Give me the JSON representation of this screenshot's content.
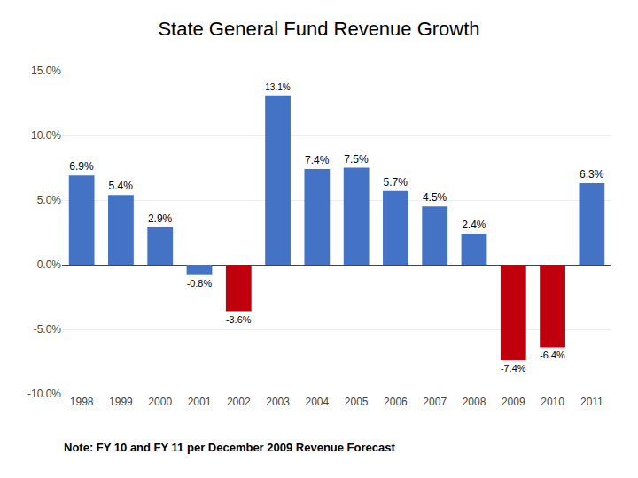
{
  "chart_data": {
    "type": "bar",
    "title": "State General Fund Revenue Growth",
    "annotations": [
      "Note: FY 10 and FY 11 per December 2009 Revenue Forecast"
    ],
    "categories": [
      "1998",
      "1999",
      "2000",
      "2001",
      "2002",
      "2003",
      "2004",
      "2005",
      "2006",
      "2007",
      "2008",
      "2009",
      "2010",
      "2011"
    ],
    "values": [
      6.9,
      5.4,
      2.9,
      -0.8,
      -3.6,
      13.1,
      7.4,
      7.5,
      5.7,
      4.5,
      2.4,
      -7.4,
      -6.4,
      6.3
    ],
    "value_labels": [
      "6.9%",
      "5.4%",
      "2.9%",
      "-0.8%",
      "-3.6%",
      "13.1%",
      "7.4%",
      "7.5%",
      "5.7%",
      "4.5%",
      "2.4%",
      "-7.4%",
      "-6.4%",
      "6.3%"
    ],
    "data_labels": true,
    "colors": [
      "#4472C4",
      "#4472C4",
      "#4472C4",
      "#4472C4",
      "#C0000C",
      "#4472C4",
      "#4472C4",
      "#4472C4",
      "#4472C4",
      "#4472C4",
      "#4472C4",
      "#C0000C",
      "#C0000C",
      "#4472C4"
    ],
    "ylim": [
      -10.0,
      15.0
    ],
    "yticks": [
      {
        "value": -10.0,
        "label": "-10.0%"
      },
      {
        "value": -5.0,
        "label": "-5.0%"
      },
      {
        "value": 0.0,
        "label": "0.0%"
      },
      {
        "value": 5.0,
        "label": "5.0%"
      },
      {
        "value": 10.0,
        "label": "10.0%"
      },
      {
        "value": 15.0,
        "label": "15.0%"
      }
    ],
    "grid": true
  }
}
